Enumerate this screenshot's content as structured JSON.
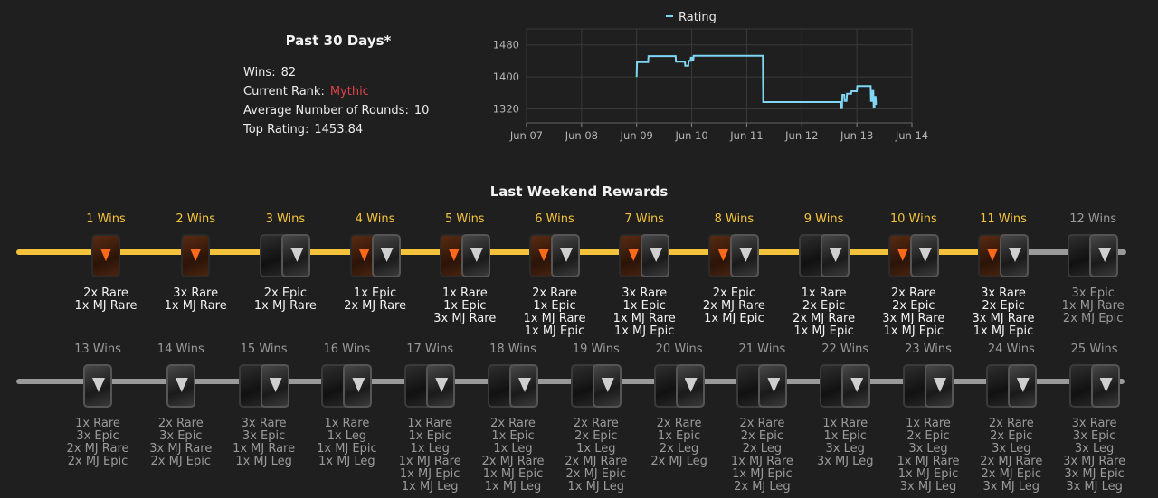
{
  "stats": {
    "title": "Past 30 Days*",
    "wins_label": "Wins:",
    "wins_value": "82",
    "rank_label": "Current Rank:",
    "rank_value": "Mythic",
    "rounds_label": "Average Number of Rounds:",
    "rounds_value": "10",
    "rating_label": "Top Rating:",
    "rating_value": "1453.84"
  },
  "chart_data": {
    "type": "line",
    "title": "",
    "legend": [
      "Rating"
    ],
    "legend_position": "top",
    "x_ticks": [
      "Jun 07",
      "Jun 08",
      "Jun 09",
      "Jun 10",
      "Jun 11",
      "Jun 12",
      "Jun 13",
      "Jun 14"
    ],
    "y_ticks": [
      1320,
      1400,
      1480
    ],
    "ylim": [
      1285,
      1520
    ],
    "grid": true,
    "line_color": "#7fd6f5",
    "series": [
      {
        "name": "Rating",
        "points": [
          [
            "2024-06-09 00:00",
            1400
          ],
          [
            "2024-06-09 00:10",
            1437
          ],
          [
            "2024-06-09 05:00",
            1437
          ],
          [
            "2024-06-09 05:10",
            1452
          ],
          [
            "2024-06-09 17:00",
            1452
          ],
          [
            "2024-06-09 17:10",
            1438
          ],
          [
            "2024-06-09 21:00",
            1438
          ],
          [
            "2024-06-09 21:10",
            1428
          ],
          [
            "2024-06-09 22:30",
            1428
          ],
          [
            "2024-06-09 22:40",
            1440
          ],
          [
            "2024-06-09 23:30",
            1440
          ],
          [
            "2024-06-09 23:40",
            1448
          ],
          [
            "2024-06-10 00:00",
            1448
          ],
          [
            "2024-06-10 00:10",
            1441
          ],
          [
            "2024-06-10 00:40",
            1441
          ],
          [
            "2024-06-10 00:50",
            1453
          ],
          [
            "2024-06-11 07:00",
            1453
          ],
          [
            "2024-06-11 07:10",
            1337
          ],
          [
            "2024-06-12 17:00",
            1337
          ],
          [
            "2024-06-12 17:10",
            1322
          ],
          [
            "2024-06-12 17:30",
            1322
          ],
          [
            "2024-06-12 17:40",
            1355
          ],
          [
            "2024-06-12 18:30",
            1355
          ],
          [
            "2024-06-12 18:40",
            1340
          ],
          [
            "2024-06-12 19:30",
            1340
          ],
          [
            "2024-06-12 19:40",
            1358
          ],
          [
            "2024-06-12 21:30",
            1358
          ],
          [
            "2024-06-12 21:40",
            1364
          ],
          [
            "2024-06-13 00:00",
            1364
          ],
          [
            "2024-06-13 00:10",
            1377
          ],
          [
            "2024-06-13 06:00",
            1377
          ],
          [
            "2024-06-13 06:10",
            1340
          ],
          [
            "2024-06-13 06:30",
            1340
          ],
          [
            "2024-06-13 06:40",
            1365
          ],
          [
            "2024-06-13 07:10",
            1365
          ],
          [
            "2024-06-13 07:20",
            1325
          ],
          [
            "2024-06-13 07:40",
            1325
          ],
          [
            "2024-06-13 07:50",
            1350
          ],
          [
            "2024-06-13 08:10",
            1350
          ],
          [
            "2024-06-13 08:20",
            1330
          ]
        ]
      }
    ]
  },
  "rewards_title": "Last Weekend Rewards",
  "rewards_row1": [
    {
      "title": "1 Wins",
      "done": true,
      "packs": [
        "rare"
      ],
      "lines": [
        "2x Rare",
        "1x MJ Rare"
      ]
    },
    {
      "title": "2 Wins",
      "done": true,
      "packs": [
        "rare"
      ],
      "lines": [
        "3x Rare",
        "1x MJ Rare"
      ]
    },
    {
      "title": "3 Wins",
      "done": true,
      "packs": [
        "dark",
        "epic"
      ],
      "lines": [
        "2x Epic",
        "1x MJ Rare"
      ]
    },
    {
      "title": "4 Wins",
      "done": true,
      "packs": [
        "rare",
        "epic"
      ],
      "lines": [
        "1x Epic",
        "2x MJ Rare"
      ]
    },
    {
      "title": "5 Wins",
      "done": true,
      "packs": [
        "rare",
        "epic"
      ],
      "lines": [
        "1x Rare",
        "1x Epic",
        "3x MJ Rare"
      ]
    },
    {
      "title": "6 Wins",
      "done": true,
      "packs": [
        "rare",
        "epic"
      ],
      "lines": [
        "2x Rare",
        "1x Epic",
        "1x MJ Rare",
        "1x MJ Epic"
      ]
    },
    {
      "title": "7 Wins",
      "done": true,
      "packs": [
        "rare",
        "epic"
      ],
      "lines": [
        "3x Rare",
        "1x Epic",
        "1x MJ Rare",
        "1x MJ Epic"
      ]
    },
    {
      "title": "8 Wins",
      "done": true,
      "packs": [
        "rare",
        "epic"
      ],
      "lines": [
        "2x Epic",
        "2x MJ Rare",
        "1x MJ Epic"
      ]
    },
    {
      "title": "9 Wins",
      "done": true,
      "packs": [
        "dark",
        "epic"
      ],
      "lines": [
        "1x Rare",
        "2x Epic",
        "2x MJ Rare",
        "1x MJ Epic"
      ]
    },
    {
      "title": "10 Wins",
      "done": true,
      "packs": [
        "rare",
        "epic"
      ],
      "lines": [
        "2x Rare",
        "2x Epic",
        "3x MJ Rare",
        "1x MJ Epic"
      ]
    },
    {
      "title": "11 Wins",
      "done": true,
      "packs": [
        "rare",
        "epic"
      ],
      "lines": [
        "3x Rare",
        "2x Epic",
        "3x MJ Rare",
        "1x MJ Epic"
      ]
    },
    {
      "title": "12 Wins",
      "done": false,
      "packs": [
        "dark",
        "epic"
      ],
      "lines": [
        "3x Epic",
        "1x MJ Rare",
        "2x MJ Epic"
      ]
    }
  ],
  "rewards_row2": [
    {
      "title": "13 Wins",
      "done": false,
      "packs": [
        "epic"
      ],
      "lines": [
        "1x Rare",
        "3x Epic",
        "2x MJ Rare",
        "2x MJ Epic"
      ]
    },
    {
      "title": "14 Wins",
      "done": false,
      "packs": [
        "epic"
      ],
      "lines": [
        "2x Rare",
        "3x Epic",
        "3x MJ Rare",
        "2x MJ Epic"
      ]
    },
    {
      "title": "15 Wins",
      "done": false,
      "packs": [
        "dark",
        "epic"
      ],
      "lines": [
        "3x Rare",
        "3x Epic",
        "1x MJ Rare",
        "1x MJ Leg"
      ]
    },
    {
      "title": "16 Wins",
      "done": false,
      "packs": [
        "dark",
        "epic"
      ],
      "lines": [
        "1x Rare",
        "1x Leg",
        "1x MJ Epic",
        "1x MJ Leg"
      ]
    },
    {
      "title": "17 Wins",
      "done": false,
      "packs": [
        "dark",
        "epic"
      ],
      "lines": [
        "1x Rare",
        "1x Epic",
        "1x Leg",
        "1x MJ Rare",
        "1x MJ Epic",
        "1x MJ Leg"
      ]
    },
    {
      "title": "18 Wins",
      "done": false,
      "packs": [
        "dark",
        "epic"
      ],
      "lines": [
        "2x Rare",
        "1x Epic",
        "1x Leg",
        "2x MJ Rare",
        "1x MJ Epic",
        "1x MJ Leg"
      ]
    },
    {
      "title": "19 Wins",
      "done": false,
      "packs": [
        "dark",
        "epic"
      ],
      "lines": [
        "2x Rare",
        "2x Epic",
        "1x Leg",
        "2x MJ Rare",
        "2x MJ Epic",
        "1x MJ Leg"
      ]
    },
    {
      "title": "20 Wins",
      "done": false,
      "packs": [
        "dark",
        "epic"
      ],
      "lines": [
        "2x Rare",
        "1x Epic",
        "2x Leg",
        "2x MJ Leg"
      ]
    },
    {
      "title": "21 Wins",
      "done": false,
      "packs": [
        "dark",
        "epic"
      ],
      "lines": [
        "2x Rare",
        "2x Epic",
        "2x Leg",
        "1x MJ Rare",
        "1x MJ Epic",
        "2x MJ Leg"
      ]
    },
    {
      "title": "22 Wins",
      "done": false,
      "packs": [
        "dark",
        "epic"
      ],
      "lines": [
        "1x Rare",
        "1x Epic",
        "3x Leg",
        "3x MJ Leg"
      ]
    },
    {
      "title": "23 Wins",
      "done": false,
      "packs": [
        "dark",
        "epic"
      ],
      "lines": [
        "1x Rare",
        "2x Epic",
        "3x Leg",
        "1x MJ Rare",
        "1x MJ Epic",
        "3x MJ Leg"
      ]
    },
    {
      "title": "24 Wins",
      "done": false,
      "packs": [
        "dark",
        "epic"
      ],
      "lines": [
        "2x Rare",
        "2x Epic",
        "3x Leg",
        "2x MJ Rare",
        "2x MJ Epic",
        "3x MJ Leg"
      ]
    },
    {
      "title": "25 Wins",
      "done": false,
      "packs": [
        "dark",
        "epic"
      ],
      "lines": [
        "3x Rare",
        "3x Epic",
        "3x Leg",
        "3x MJ Rare",
        "3x MJ Epic",
        "3x MJ Leg"
      ]
    }
  ]
}
